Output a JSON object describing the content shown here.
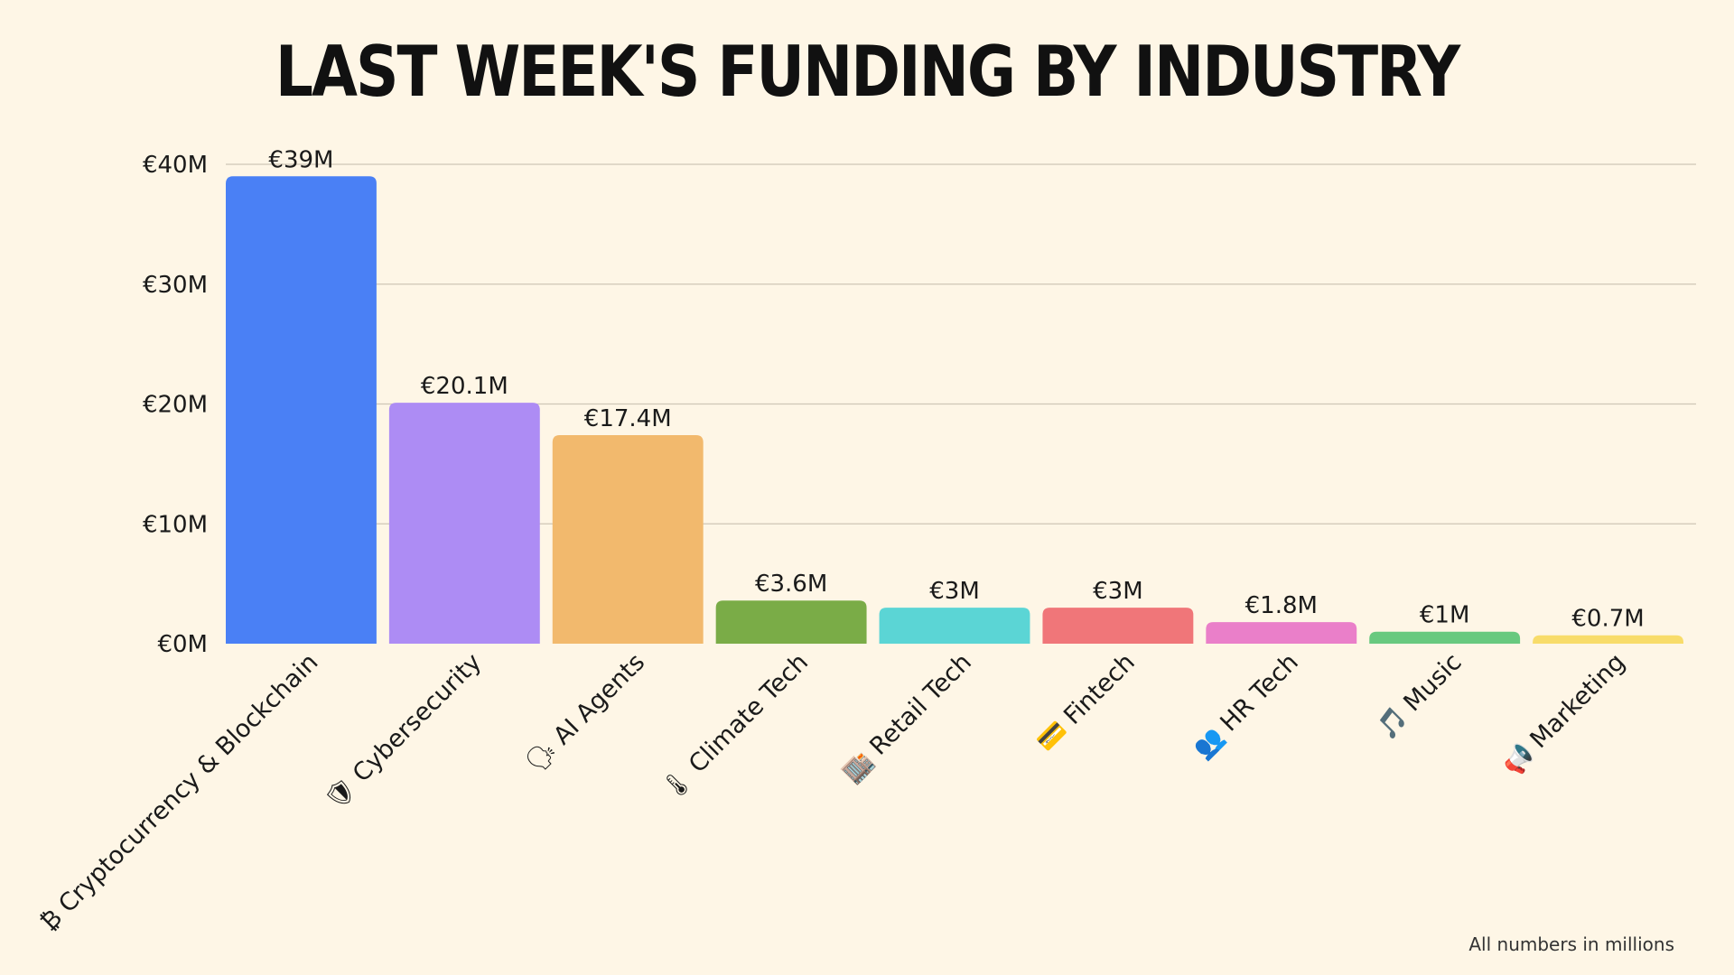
{
  "title": "LAST WEEK'S FUNDING BY INDUSTRY",
  "footnote": "All numbers in millions",
  "chart_data": {
    "type": "bar",
    "title": "LAST WEEK'S FUNDING BY INDUSTRY",
    "xlabel": "",
    "ylabel": "",
    "ylim": [
      0,
      40
    ],
    "yticks": [
      {
        "value": 0,
        "label": "€0M"
      },
      {
        "value": 10,
        "label": "€10M"
      },
      {
        "value": 20,
        "label": "€20M"
      },
      {
        "value": 30,
        "label": "€30M"
      },
      {
        "value": 40,
        "label": "€40M"
      }
    ],
    "grid": true,
    "categories": [
      {
        "icon": "₿",
        "label": "Cryptocurrency & Blockchain",
        "value": 39,
        "value_label": "€39M",
        "color": "#4a80f5"
      },
      {
        "icon": "🛡",
        "label": "Cybersecurity",
        "value": 20.1,
        "value_label": "€20.1M",
        "color": "#ad8cf4"
      },
      {
        "icon": "🗣",
        "label": "AI Agents",
        "value": 17.4,
        "value_label": "€17.4M",
        "color": "#f2b96d"
      },
      {
        "icon": "🌡",
        "label": "Climate Tech",
        "value": 3.6,
        "value_label": "€3.6M",
        "color": "#7aac47"
      },
      {
        "icon": "🏬",
        "label": "Retail Tech",
        "value": 3,
        "value_label": "€3M",
        "color": "#5bd5d5"
      },
      {
        "icon": "💳",
        "label": "Fintech",
        "value": 3,
        "value_label": "€3M",
        "color": "#f07679"
      },
      {
        "icon": "👥",
        "label": "HR Tech",
        "value": 1.8,
        "value_label": "€1.8M",
        "color": "#ea7fc9"
      },
      {
        "icon": "🎵",
        "label": "Music",
        "value": 1,
        "value_label": "€1M",
        "color": "#68c97f"
      },
      {
        "icon": "📢",
        "label": "Marketing",
        "value": 0.7,
        "value_label": "€0.7M",
        "color": "#f8dc6a"
      }
    ]
  }
}
